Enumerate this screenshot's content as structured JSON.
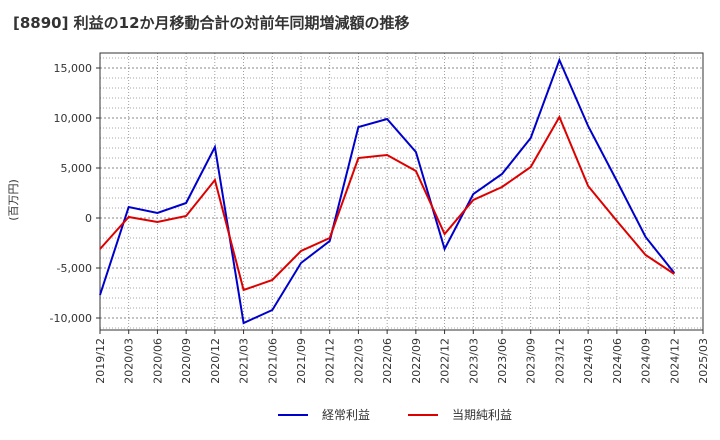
{
  "chart_data": {
    "type": "line",
    "title": "[8890]  利益の12か月移動合計の対前年同期増減額の推移",
    "xlabel": "",
    "ylabel": "(百万円)",
    "ylim": [
      -11200,
      16500
    ],
    "yticks": [
      -10000,
      -5000,
      0,
      5000,
      10000,
      15000
    ],
    "ytick_labels": [
      "-10,000",
      "-5,000",
      "0",
      "5,000",
      "10,000",
      "15,000"
    ],
    "x": [
      "2019/12",
      "2020/03",
      "2020/06",
      "2020/09",
      "2020/12",
      "2021/03",
      "2021/06",
      "2021/09",
      "2021/12",
      "2022/03",
      "2022/06",
      "2022/09",
      "2022/12",
      "2023/03",
      "2023/06",
      "2023/09",
      "2023/12",
      "2024/03",
      "2024/06",
      "2024/09",
      "2024/12",
      "2025/03"
    ],
    "grid": true,
    "series": [
      {
        "name": "経常利益",
        "color": "#0000cc",
        "values": [
          -7700,
          1100,
          500,
          1500,
          7100,
          -10500,
          -9200,
          -4500,
          -2300,
          9100,
          9900,
          6600,
          -3100,
          2400,
          4400,
          8000,
          15800,
          9200,
          3700,
          -1900,
          -5500,
          null
        ]
      },
      {
        "name": "当期純利益",
        "color": "#dd0000",
        "values": [
          -3100,
          100,
          -400,
          200,
          3800,
          -7200,
          -6200,
          -3300,
          -2000,
          6000,
          6300,
          4700,
          -1600,
          1800,
          3100,
          5100,
          10100,
          3200,
          -300,
          -3700,
          -5600,
          null
        ]
      }
    ],
    "legend_position": "bottom-center"
  }
}
